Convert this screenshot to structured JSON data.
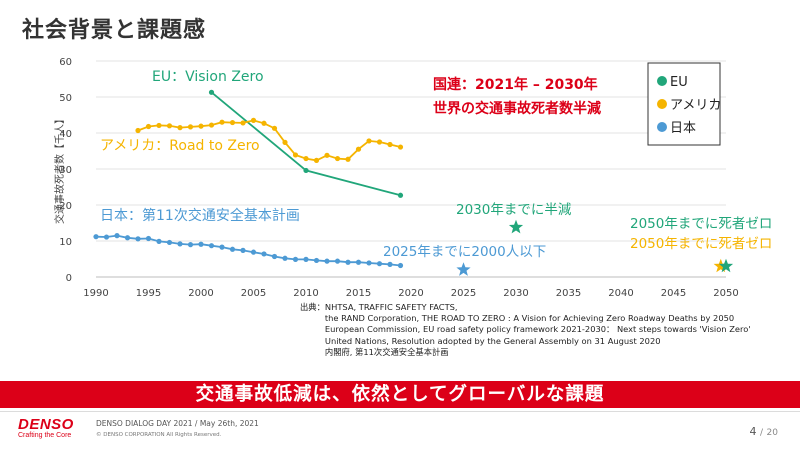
{
  "page_title": "社会背景と課題感",
  "chart_data": {
    "type": "line",
    "ylabel": "交通事故死者数【千人】",
    "xlim": [
      1990,
      2050
    ],
    "ylim": [
      0,
      60
    ],
    "x_ticks": [
      1990,
      1995,
      2000,
      2005,
      2010,
      2015,
      2020,
      2025,
      2030,
      2035,
      2040,
      2045,
      2050
    ],
    "y_ticks": [
      0,
      10,
      20,
      30,
      40,
      50,
      60
    ],
    "series": [
      {
        "name": "EU",
        "color": "#21a67a",
        "x": [
          2001,
          2010,
          2019
        ],
        "y": [
          51.3,
          29.6,
          22.7
        ]
      },
      {
        "name": "アメリカ",
        "color": "#f5b400",
        "x": [
          1994,
          1995,
          1996,
          1997,
          1998,
          1999,
          2000,
          2001,
          2002,
          2003,
          2004,
          2005,
          2006,
          2007,
          2008,
          2009,
          2010,
          2011,
          2012,
          2013,
          2014,
          2015,
          2016,
          2017,
          2018,
          2019
        ],
        "y": [
          40.7,
          41.8,
          42.1,
          42.0,
          41.5,
          41.7,
          41.9,
          42.2,
          43.0,
          42.9,
          42.8,
          43.5,
          42.7,
          41.3,
          37.4,
          33.9,
          32.9,
          32.4,
          33.8,
          32.9,
          32.7,
          35.5,
          37.8,
          37.5,
          36.8,
          36.1
        ]
      },
      {
        "name": "日本",
        "color": "#4d9ad4",
        "x": [
          1990,
          1991,
          1992,
          1993,
          1994,
          1995,
          1996,
          1997,
          1998,
          1999,
          2000,
          2001,
          2002,
          2003,
          2004,
          2005,
          2006,
          2007,
          2008,
          2009,
          2010,
          2011,
          2012,
          2013,
          2014,
          2015,
          2016,
          2017,
          2018,
          2019
        ],
        "y": [
          11.2,
          11.1,
          11.5,
          10.9,
          10.6,
          10.7,
          9.9,
          9.6,
          9.2,
          9.0,
          9.1,
          8.7,
          8.3,
          7.7,
          7.4,
          6.9,
          6.4,
          5.7,
          5.2,
          4.9,
          4.9,
          4.6,
          4.4,
          4.4,
          4.1,
          4.1,
          3.9,
          3.7,
          3.5,
          3.2
        ]
      }
    ],
    "targets": [
      {
        "label": "2025年までに2000人以下",
        "x": 2025,
        "y": 2.0,
        "color": "#4d9ad4"
      },
      {
        "label": "2030年までに半減",
        "x": 2030,
        "y": 13.8,
        "color": "#21a67a"
      },
      {
        "label": "2050年までに死者ゼロ",
        "x": 2049.5,
        "y": 3.0,
        "color": "#f5b400"
      },
      {
        "label": "2050年までに死者ゼロ",
        "x": 2050,
        "y": 3.0,
        "color": "#21a67a"
      }
    ],
    "annotations": {
      "eu": "EU：Vision Zero",
      "usa": "アメリカ：Road to Zero",
      "japan": "日本：第11次交通安全基本計画",
      "un_line1": "国連：2021年 – 2030年",
      "un_line2": "世界の交通事故死者数半減"
    },
    "legend": {
      "position": "top-right",
      "items": [
        "EU",
        "アメリカ",
        "日本"
      ]
    }
  },
  "sources": "出典：NHTSA, TRAFFIC SAFETY FACTS,\n　　　the RAND Corporation, THE ROAD TO ZERO : A Vision for Achieving Zero Roadway Deaths by 2050\n　　　European Commission, EU road safety policy framework 2021-2030： Next steps towards 'Vision Zero'\n　　　United Nations, Resolution adopted by the General Assembly on 31 August 2020\n　　　内閣府, 第11次交通安全基本計画",
  "banner": "交通事故低減は、依然としてグローバルな課題",
  "footer": {
    "logo_word": "DENSO",
    "logo_tag": "Crafting the Core",
    "event": "DENSO DIALOG DAY 2021 / May 26th, 2021",
    "copyright": "© DENSO CORPORATION All Rights Reserved.",
    "page_current": "4",
    "page_sep": "/",
    "page_total": "20"
  }
}
